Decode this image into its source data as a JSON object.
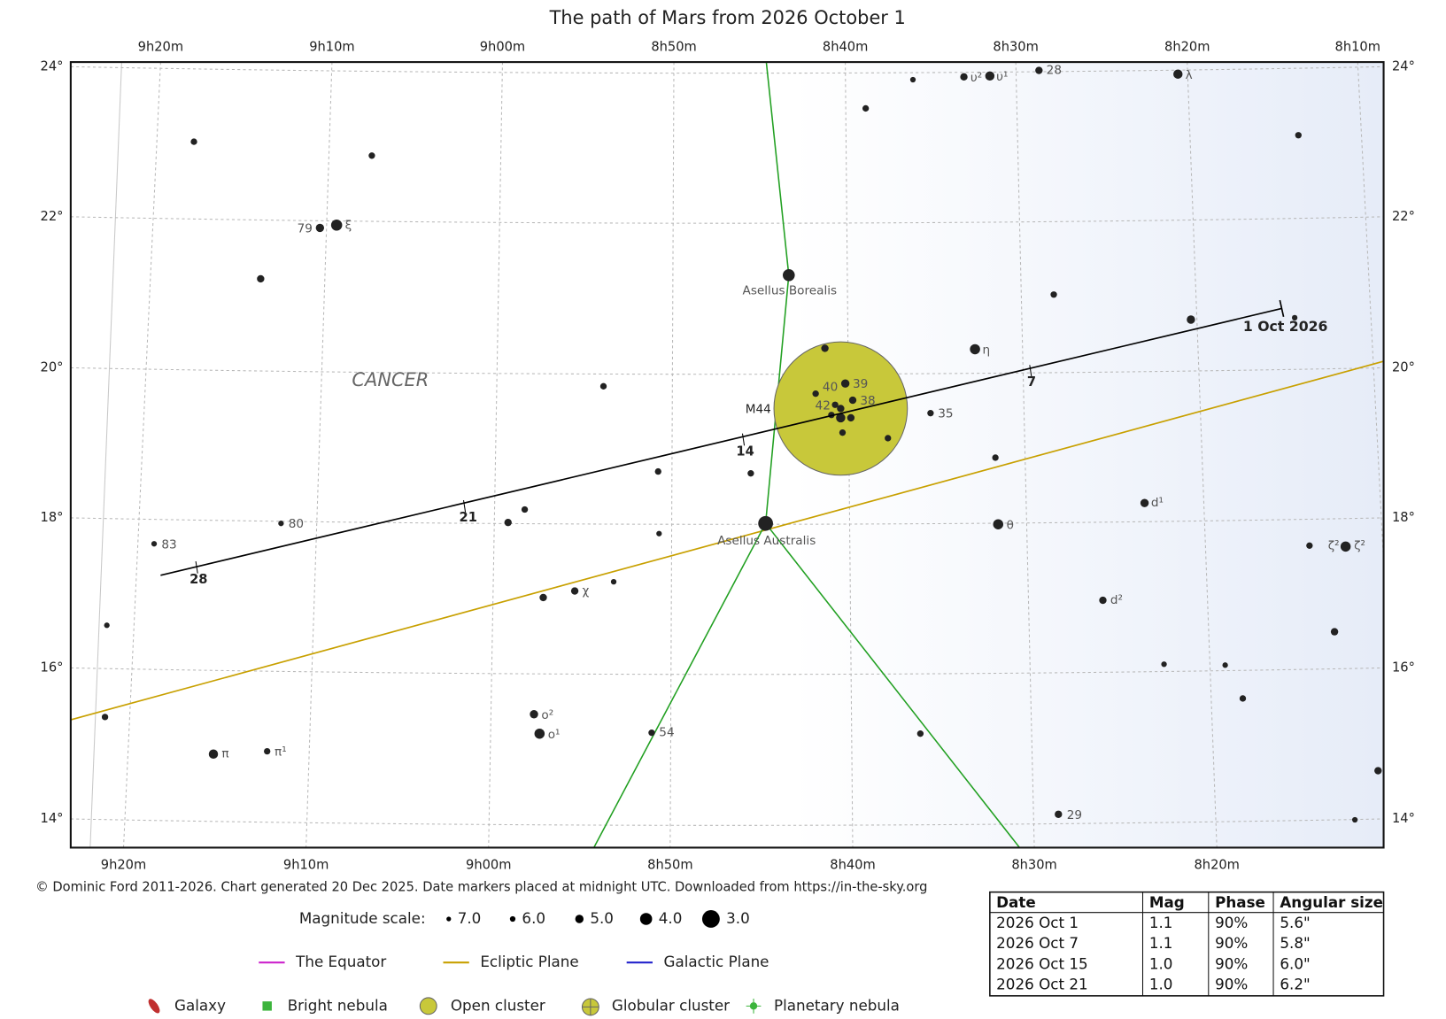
{
  "header": {
    "title": "The path of Mars from 2026 October 1"
  },
  "axes": {
    "ra_top": [
      "9h20m",
      "9h10m",
      "9h00m",
      "8h50m",
      "8h40m",
      "8h30m",
      "8h20m",
      "8h10m"
    ],
    "ra_bottom": [
      "9h20m",
      "9h10m",
      "9h00m",
      "8h50m",
      "8h40m",
      "8h30m",
      "8h20m"
    ],
    "dec_left": [
      "24°",
      "22°",
      "20°",
      "18°",
      "16°",
      "14°"
    ],
    "dec_right": [
      "24°",
      "22°",
      "20°",
      "18°",
      "16°",
      "14°"
    ]
  },
  "chart": {
    "constellation": "CANCER",
    "cluster_label": "M44",
    "start_label": "1 Oct 2026",
    "date_markers": [
      "7",
      "14",
      "21",
      "28"
    ],
    "star_labels": [
      "79",
      "ξ",
      "Asellus Borealis",
      "υ²",
      "υ¹",
      "28",
      "λ",
      "η",
      "40",
      "39",
      "42",
      "38",
      "35",
      "Asellus Australis",
      "θ",
      "d¹",
      "80",
      "83",
      "ζ²",
      "ζ²",
      "χ",
      "d²",
      "ο²",
      "ο¹",
      "54",
      "π",
      "π¹",
      "29"
    ]
  },
  "footer": {
    "credit": "© Dominic Ford 2011-2026. Chart generated 20 Dec 2025. Date markers placed at midnight UTC. Downloaded from https://in-the-sky.org",
    "magnitude_title": "Magnitude scale:",
    "magnitudes": [
      "7.0",
      "6.0",
      "5.0",
      "4.0",
      "3.0"
    ],
    "lines": [
      "The Equator",
      "Ecliptic Plane",
      "Galactic Plane"
    ],
    "objects": [
      "Galaxy",
      "Bright nebula",
      "Open cluster",
      "Globular cluster",
      "Planetary nebula"
    ]
  },
  "table": {
    "columns": [
      "Date",
      "Mag",
      "Phase",
      "Angular size"
    ],
    "rows": [
      [
        "2026 Oct 1",
        "1.1",
        "90%",
        "5.6\""
      ],
      [
        "2026 Oct 7",
        "1.1",
        "90%",
        "5.8\""
      ],
      [
        "2026 Oct 15",
        "1.0",
        "90%",
        "6.0\""
      ],
      [
        "2026 Oct 21",
        "1.0",
        "90%",
        "6.2\""
      ]
    ]
  }
}
